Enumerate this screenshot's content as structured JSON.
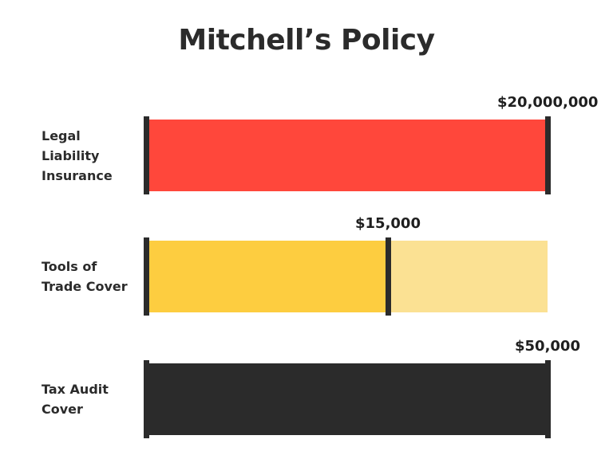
{
  "title": "Mitchell’s Policy",
  "chart_data": {
    "type": "bar",
    "orientation": "horizontal",
    "title": "Mitchell’s Policy",
    "rows": [
      {
        "category": "Legal\nLiability\nInsurance",
        "value_label": "$20,000,000",
        "fraction": 1.0,
        "color": "#ff473b",
        "track_color": "#ff473b"
      },
      {
        "category": "Tools of\nTrade Cover",
        "value_label": "$15,000",
        "fraction": 0.6,
        "color": "#fdcd40",
        "track_color": "#fbe193"
      },
      {
        "category": "Tax Audit\nCover",
        "value_label": "$50,000",
        "fraction": 1.0,
        "color": "#2b2b2b",
        "track_color": "#2b2b2b"
      }
    ]
  }
}
